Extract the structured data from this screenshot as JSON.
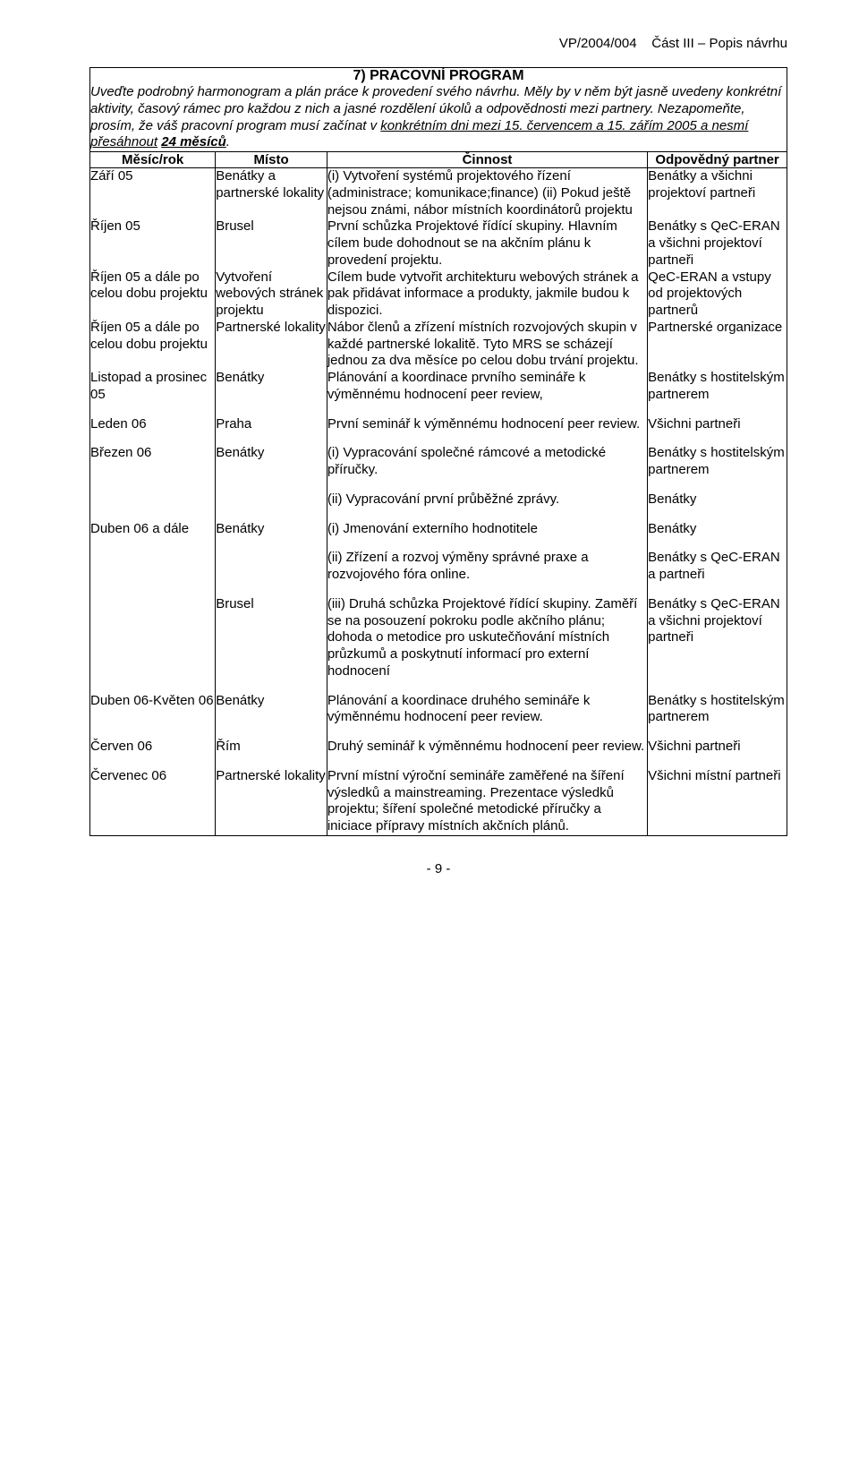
{
  "page": {
    "header_left": "VP/2004/004",
    "header_right": "Část III – Popis návrhu",
    "page_number": "- 9 -"
  },
  "section": {
    "title": "7) PRACOVNÍ PROGRAM",
    "intro_line1": "Uveďte podrobný harmonogram a plán práce k provedení svého návrhu. Měly by v něm být jasně uvedeny konkrétní aktivity, časový rámec pro každou z nich a jasné rozdělení úkolů a odpovědnosti mezi partnery. Nezapomeňte, prosím, že váš pracovní program musí začínat v ",
    "intro_underlined1": "konkrétním dni mezi 15. červencem a 15. zářím 2005 a nesmí přesáhnout",
    "intro_after1": " ",
    "intro_bold_underlined": "24 měsíců",
    "intro_period": "."
  },
  "columns": {
    "c1": "Měsíc/rok",
    "c2": "Místo",
    "c3": "Činnost",
    "c4": "Odpovědný partner"
  },
  "rows": [
    {
      "m": "Září 05",
      "p": "Benátky a partnerské lokality",
      "a": "(i) Vytvoření systémů projektového řízení (administrace; komunikace;finance) (ii) Pokud ještě nejsou známi, nábor místních koordinátorů projektu",
      "r": "Benátky a všichni projektoví partneři"
    },
    {
      "m": "Říjen 05",
      "p": "Brusel",
      "a": "První schůzka Projektové řídící skupiny. Hlavním cílem bude dohodnout se na akčním plánu k provedení projektu.",
      "r": "Benátky s QeC-ERAN a všichni projektoví partneři"
    },
    {
      "m": "Říjen 05 a dále po celou dobu projektu",
      "p": "Vytvoření webových stránek projektu",
      "a": "Cílem bude vytvořit architekturu webových stránek a pak přidávat informace a produkty, jakmile budou k dispozici.",
      "r": "QeC-ERAN a vstupy od projektových partnerů"
    },
    {
      "m": "Říjen 05 a dále po celou dobu projektu",
      "p": "Partnerské lokality",
      "a": "Nábor členů a zřízení místních rozvojových skupin v každé partnerské lokalitě. Tyto MRS se scházejí jednou za dva měsíce po celou dobu trvání projektu.",
      "r": "Partnerské organizace"
    },
    {
      "m": "Listopad a prosinec 05",
      "p": "Benátky",
      "a": "Plánování a koordinace prvního semináře k výměnnému hodnocení peer review,",
      "r": "Benátky s hostitelským partnerem"
    },
    {
      "m": "Leden 06",
      "p": "Praha",
      "a": "První seminář k výměnnému hodnocení peer review.",
      "r": "Všichni partneři",
      "gap": true
    },
    {
      "m": "Březen 06",
      "p": "Benátky",
      "a": "(i) Vypracování společné rámcové a metodické příručky.",
      "r": "Benátky s hostitelským partnerem",
      "gap": true
    },
    {
      "m": "",
      "p": "",
      "a": "(ii) Vypracování první průběžné zprávy.",
      "r": "Benátky",
      "gap": true
    },
    {
      "m": "Duben 06 a dále",
      "p": "Benátky",
      "a": "(i) Jmenování externího hodnotitele",
      "r": "Benátky",
      "gap": true
    },
    {
      "m": "",
      "p": "",
      "a": "(ii) Zřízení a rozvoj výměny správné praxe a rozvojového fóra online.",
      "r": "Benátky s QeC-ERAN a partneři",
      "gap": true
    },
    {
      "m": "",
      "p": "Brusel",
      "a": "(iii) Druhá schůzka Projektové řídící skupiny. Zaměří se na posouzení pokroku podle akčního plánu; dohoda o metodice pro uskutečňování místních průzkumů a poskytnutí informací pro externí hodnocení",
      "r": "Benátky s QeC-ERAN a všichni projektoví partneři",
      "gap": true
    },
    {
      "m": "Duben 06-Květen 06",
      "p": "Benátky",
      "a": "Plánování a koordinace druhého semináře k výměnnému hodnocení peer review.",
      "r": "Benátky s hostitelským partnerem",
      "gap": true
    },
    {
      "m": "Červen 06",
      "p": "Řím",
      "a": "Druhý seminář k výměnnému hodnocení peer review.",
      "r": "Všichni partneři",
      "gap": true
    },
    {
      "m": "Červenec 06",
      "p": "Partnerské lokality",
      "a": "První místní výroční semináře zaměřené na šíření výsledků a mainstreaming. Prezentace výsledků projektu; šíření společné metodické příručky a iniciace přípravy místních akčních plánů.",
      "r": "Všichni místní partneři",
      "gap": true,
      "last": true
    }
  ]
}
